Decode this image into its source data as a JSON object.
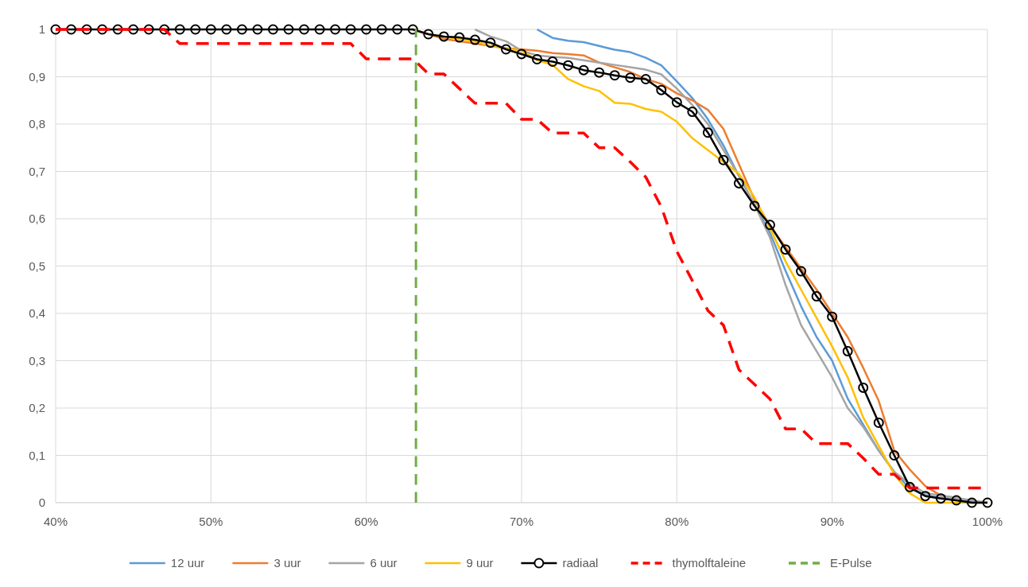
{
  "chart_data": {
    "type": "line",
    "xlim": [
      40,
      100
    ],
    "ylim": [
      0,
      1
    ],
    "xticks": [
      {
        "value": 40,
        "label": "40%"
      },
      {
        "value": 50,
        "label": "50%"
      },
      {
        "value": 60,
        "label": "60%"
      },
      {
        "value": 70,
        "label": "70%"
      },
      {
        "value": 80,
        "label": "80%"
      },
      {
        "value": 90,
        "label": "90%"
      },
      {
        "value": 100,
        "label": "100%"
      }
    ],
    "yticks": [
      0,
      {
        "value": 0.1,
        "label": "0,1"
      },
      {
        "value": 0.2,
        "label": "0,2"
      },
      {
        "value": 0.3,
        "label": "0,3"
      },
      {
        "value": 0.4,
        "label": "0,4"
      },
      {
        "value": 0.5,
        "label": "0,5"
      },
      {
        "value": 0.6,
        "label": "0,6"
      },
      {
        "value": 0.7,
        "label": "0,7"
      },
      {
        "value": 0.8,
        "label": "0,8"
      },
      {
        "value": 0.9,
        "label": "0,9"
      },
      1
    ],
    "grid": true,
    "legend": "bottom",
    "series": [
      {
        "name": "12 uur",
        "color": "#5b9bd5",
        "line_style": "solid",
        "marker": "none",
        "x": [
          71,
          72,
          73,
          74,
          75,
          76,
          77,
          78,
          79,
          80,
          81,
          82,
          83,
          84,
          85,
          86,
          87,
          88,
          89,
          90,
          91,
          92,
          93,
          94,
          95,
          96,
          97,
          98,
          99,
          100
        ],
        "values": [
          1,
          0.982,
          0.976,
          0.973,
          0.965,
          0.957,
          0.952,
          0.94,
          0.924,
          0.89,
          0.855,
          0.81,
          0.755,
          0.69,
          0.63,
          0.57,
          0.49,
          0.415,
          0.35,
          0.3,
          0.22,
          0.165,
          0.11,
          0.065,
          0.03,
          0.015,
          0.01,
          0.005,
          0.003,
          0
        ]
      },
      {
        "name": "3 uur",
        "color": "#ed7d31",
        "line_style": "solid",
        "marker": "none",
        "x": [
          63,
          64,
          65,
          66,
          67,
          68,
          69,
          70,
          71,
          72,
          73,
          74,
          75,
          76,
          77,
          78,
          79,
          80,
          81,
          82,
          83,
          84,
          85,
          86,
          87,
          88,
          89,
          90,
          91,
          92,
          93,
          94,
          95,
          96,
          97,
          98
        ],
        "values": [
          1,
          0.99,
          0.98,
          0.975,
          0.97,
          0.965,
          0.96,
          0.958,
          0.955,
          0.95,
          0.948,
          0.945,
          0.93,
          0.92,
          0.91,
          0.895,
          0.885,
          0.865,
          0.85,
          0.83,
          0.79,
          0.715,
          0.64,
          0.585,
          0.54,
          0.495,
          0.45,
          0.4,
          0.35,
          0.285,
          0.215,
          0.11,
          0.07,
          0.035,
          0.015,
          0.01
        ]
      },
      {
        "name": "6 uur",
        "color": "#a5a5a5",
        "line_style": "solid",
        "marker": "none",
        "x": [
          67,
          68,
          69,
          70,
          71,
          72,
          73,
          74,
          75,
          76,
          77,
          78,
          79,
          80,
          81,
          82,
          83,
          84,
          85,
          86,
          87,
          88,
          89,
          90,
          91,
          92,
          93,
          94,
          95,
          96,
          97,
          98,
          99,
          100
        ],
        "values": [
          1,
          0.985,
          0.975,
          0.955,
          0.945,
          0.942,
          0.94,
          0.935,
          0.93,
          0.925,
          0.92,
          0.915,
          0.905,
          0.875,
          0.84,
          0.8,
          0.745,
          0.69,
          0.63,
          0.56,
          0.46,
          0.375,
          0.32,
          0.265,
          0.2,
          0.16,
          0.11,
          0.065,
          0.04,
          0.02,
          0.015,
          0.01,
          0.005,
          0
        ]
      },
      {
        "name": "9 uur",
        "color": "#ffc000",
        "line_style": "solid",
        "marker": "none",
        "x": [
          64,
          65,
          66,
          67,
          68,
          69,
          70,
          71,
          72,
          73,
          74,
          75,
          76,
          77,
          78,
          79,
          80,
          81,
          82,
          83,
          84,
          85,
          86,
          87,
          88,
          89,
          90,
          91,
          92,
          93,
          94,
          95,
          96,
          97,
          98,
          99,
          100
        ],
        "values": [
          0.99,
          0.985,
          0.98,
          0.975,
          0.965,
          0.96,
          0.955,
          0.935,
          0.925,
          0.895,
          0.88,
          0.87,
          0.845,
          0.843,
          0.832,
          0.826,
          0.805,
          0.77,
          0.745,
          0.72,
          0.695,
          0.645,
          0.58,
          0.51,
          0.45,
          0.39,
          0.33,
          0.265,
          0.18,
          0.12,
          0.06,
          0.02,
          0,
          0,
          0,
          0,
          0
        ]
      },
      {
        "name": "radiaal",
        "color": "#000000",
        "line_style": "solid",
        "marker": "circle",
        "x": [
          40,
          41,
          42,
          43,
          44,
          45,
          46,
          47,
          48,
          49,
          50,
          51,
          52,
          53,
          54,
          55,
          56,
          57,
          58,
          59,
          60,
          61,
          62,
          63,
          64,
          65,
          66,
          67,
          68,
          69,
          70,
          71,
          72,
          73,
          74,
          75,
          76,
          77,
          78,
          79,
          80,
          81,
          82,
          83,
          84,
          85,
          86,
          87,
          88,
          89,
          90,
          91,
          92,
          93,
          94,
          95,
          96,
          97,
          98,
          99,
          100
        ],
        "values": [
          1,
          1,
          1,
          1,
          1,
          1,
          1,
          1,
          1,
          1,
          1,
          1,
          1,
          1,
          1,
          1,
          1,
          1,
          1,
          1,
          1,
          1,
          1,
          1,
          0.99,
          0.985,
          0.983,
          0.978,
          0.972,
          0.958,
          0.948,
          0.937,
          0.932,
          0.924,
          0.914,
          0.909,
          0.903,
          0.898,
          0.895,
          0.872,
          0.846,
          0.826,
          0.782,
          0.724,
          0.675,
          0.627,
          0.587,
          0.535,
          0.489,
          0.436,
          0.393,
          0.32,
          0.243,
          0.169,
          0.1,
          0.033,
          0.014,
          0.009,
          0.005,
          0,
          0
        ]
      },
      {
        "name": "thymolftaleine",
        "color": "#ff0000",
        "line_style": "dashed",
        "marker": "none",
        "x": [
          40,
          41,
          42,
          43,
          44,
          45,
          46,
          47,
          48,
          49,
          50,
          51,
          52,
          53,
          54,
          55,
          56,
          57,
          58,
          59,
          60,
          61,
          62,
          63,
          64,
          65,
          66,
          67,
          68,
          69,
          70,
          71,
          72,
          73,
          74,
          75,
          76,
          77,
          78,
          79,
          80,
          81,
          82,
          83,
          84,
          85,
          86,
          87,
          88,
          89,
          90,
          91,
          92,
          93,
          94,
          95,
          96,
          97,
          98,
          99,
          100
        ],
        "values": [
          1,
          1,
          1,
          1,
          1,
          1,
          1,
          1,
          0.97,
          0.97,
          0.97,
          0.97,
          0.97,
          0.97,
          0.97,
          0.97,
          0.97,
          0.97,
          0.97,
          0.97,
          0.938,
          0.938,
          0.938,
          0.938,
          0.906,
          0.906,
          0.875,
          0.844,
          0.844,
          0.844,
          0.81,
          0.81,
          0.781,
          0.781,
          0.781,
          0.75,
          0.75,
          0.72,
          0.688,
          0.625,
          0.531,
          0.469,
          0.406,
          0.375,
          0.281,
          0.25,
          0.219,
          0.156,
          0.156,
          0.125,
          0.125,
          0.125,
          0.094,
          0.06,
          0.06,
          0.031,
          0.031,
          0.031,
          0.031,
          0.031,
          0.031
        ]
      },
      {
        "name": "E-Pulse",
        "color": "#70ad47",
        "line_style": "dashed",
        "marker": "none",
        "x": [
          63.2,
          63.2
        ],
        "values": [
          0,
          1
        ]
      }
    ]
  }
}
